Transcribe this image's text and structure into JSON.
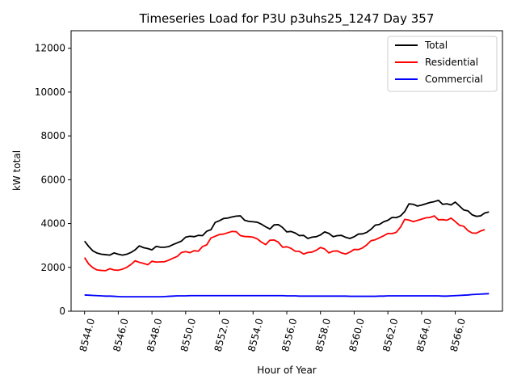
{
  "chart_data": {
    "type": "line",
    "title": "Timeseries Load for P3U p3uhs25_1247  Day 357",
    "xlabel": "Hour of Year",
    "ylabel": "kW total",
    "xlim": [
      8543.2,
      8568.8
    ],
    "ylim": [
      0,
      12800
    ],
    "x_ticks": [
      8544,
      8546,
      8548,
      8550,
      8552,
      8554,
      8556,
      8558,
      8560,
      8562,
      8564,
      8566
    ],
    "x_tick_labels": [
      "8544.0",
      "8546.0",
      "8548.0",
      "8550.0",
      "8552.0",
      "8554.0",
      "8556.0",
      "8558.0",
      "8560.0",
      "8562.0",
      "8564.0",
      "8566.0"
    ],
    "y_ticks": [
      0,
      2000,
      4000,
      6000,
      8000,
      10000,
      12000
    ],
    "y_tick_labels": [
      "0",
      "2000",
      "4000",
      "6000",
      "8000",
      "10000",
      "12000"
    ],
    "grid": false,
    "legend_position": "upper right",
    "x_start": 8544,
    "x_step": 0.25,
    "series": [
      {
        "name": "Total",
        "color": "#000000",
        "values": [
          3200,
          2950,
          2750,
          2650,
          2600,
          2580,
          2560,
          2660,
          2600,
          2560,
          2600,
          2680,
          2800,
          2980,
          2900,
          2860,
          2800,
          2960,
          2920,
          2920,
          2950,
          3040,
          3120,
          3200,
          3380,
          3420,
          3400,
          3460,
          3450,
          3650,
          3720,
          4050,
          4130,
          4230,
          4250,
          4300,
          4340,
          4350,
          4150,
          4100,
          4080,
          4060,
          3970,
          3850,
          3750,
          3940,
          3950,
          3820,
          3620,
          3640,
          3570,
          3450,
          3460,
          3320,
          3380,
          3400,
          3480,
          3620,
          3550,
          3400,
          3450,
          3460,
          3370,
          3320,
          3400,
          3520,
          3530,
          3600,
          3740,
          3930,
          3960,
          4080,
          4150,
          4280,
          4270,
          4350,
          4550,
          4900,
          4880,
          4800,
          4840,
          4900,
          4960,
          5000,
          5060,
          4880,
          4900,
          4850,
          4980,
          4800,
          4620,
          4580,
          4400,
          4330,
          4350,
          4480,
          4530
        ]
      },
      {
        "name": "Residential",
        "color": "#ff0000",
        "values": [
          2450,
          2150,
          1980,
          1880,
          1860,
          1850,
          1940,
          1880,
          1870,
          1920,
          2000,
          2130,
          2300,
          2230,
          2180,
          2120,
          2280,
          2240,
          2250,
          2260,
          2330,
          2420,
          2500,
          2680,
          2720,
          2670,
          2760,
          2740,
          2950,
          3030,
          3340,
          3420,
          3500,
          3520,
          3580,
          3640,
          3630,
          3450,
          3410,
          3400,
          3380,
          3300,
          3150,
          3040,
          3240,
          3250,
          3150,
          2920,
          2940,
          2870,
          2740,
          2730,
          2610,
          2680,
          2700,
          2780,
          2910,
          2840,
          2660,
          2740,
          2750,
          2660,
          2610,
          2700,
          2820,
          2810,
          2890,
          3030,
          3220,
          3260,
          3350,
          3440,
          3550,
          3540,
          3600,
          3840,
          4190,
          4160,
          4090,
          4140,
          4200,
          4260,
          4280,
          4350,
          4170,
          4180,
          4150,
          4250,
          4090,
          3920,
          3880,
          3680,
          3570,
          3560,
          3660,
          3720
        ]
      },
      {
        "name": "Commercial",
        "color": "#0000ff",
        "values": [
          740,
          730,
          720,
          710,
          700,
          690,
          690,
          680,
          670,
          660,
          660,
          660,
          660,
          660,
          660,
          660,
          660,
          660,
          660,
          670,
          680,
          690,
          700,
          700,
          700,
          710,
          710,
          710,
          710,
          710,
          710,
          710,
          710,
          710,
          710,
          710,
          710,
          710,
          710,
          710,
          710,
          710,
          710,
          710,
          710,
          710,
          710,
          710,
          700,
          700,
          700,
          690,
          690,
          690,
          690,
          690,
          690,
          690,
          690,
          690,
          690,
          690,
          690,
          680,
          680,
          680,
          680,
          680,
          680,
          680,
          690,
          690,
          700,
          700,
          700,
          700,
          700,
          700,
          700,
          700,
          700,
          700,
          700,
          700,
          700,
          690,
          690,
          700,
          710,
          720,
          730,
          740,
          760,
          770,
          780,
          790,
          800
        ]
      }
    ]
  }
}
